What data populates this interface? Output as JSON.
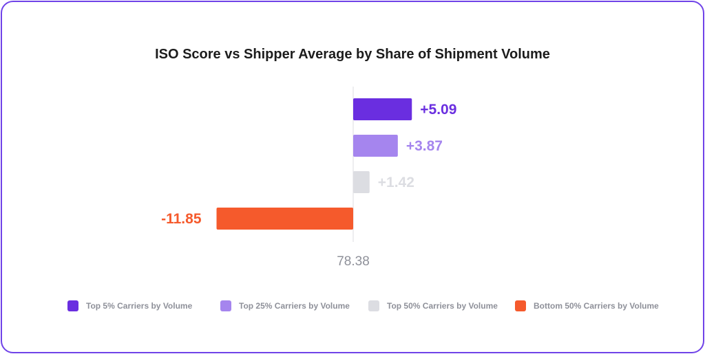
{
  "chart_data": {
    "type": "bar",
    "orientation": "horizontal",
    "title": "ISO Score vs Shipper Average by Share of Shipment Volume",
    "baseline_label": "78.38",
    "categories": [
      "Top 5% Carriers by Volume",
      "Top 25% Carriers by Volume",
      "Top 50% Carriers by Volume",
      "Bottom 50% Carriers by Volume"
    ],
    "values": [
      5.09,
      3.87,
      1.42,
      -11.85
    ],
    "value_labels": [
      "+5.09",
      "+3.87",
      "+1.42",
      "-11.85"
    ],
    "colors": [
      "#6a2ee0",
      "#a585ee",
      "#dcdde2",
      "#f55a2c"
    ],
    "label_colors": [
      "#6a2ee0",
      "#a585ee",
      "#dcdde2",
      "#f55a2c"
    ],
    "legend": {
      "position": "bottom",
      "items": [
        {
          "label": "Top 5% Carriers by Volume",
          "color": "#6a2ee0"
        },
        {
          "label": "Top 25% Carriers by Volume",
          "color": "#a585ee"
        },
        {
          "label": "Top 50% Carriers by Volume",
          "color": "#dcdde2"
        },
        {
          "label": "Bottom 50% Carriers by Volume",
          "color": "#f55a2c"
        }
      ]
    },
    "grid": false
  }
}
